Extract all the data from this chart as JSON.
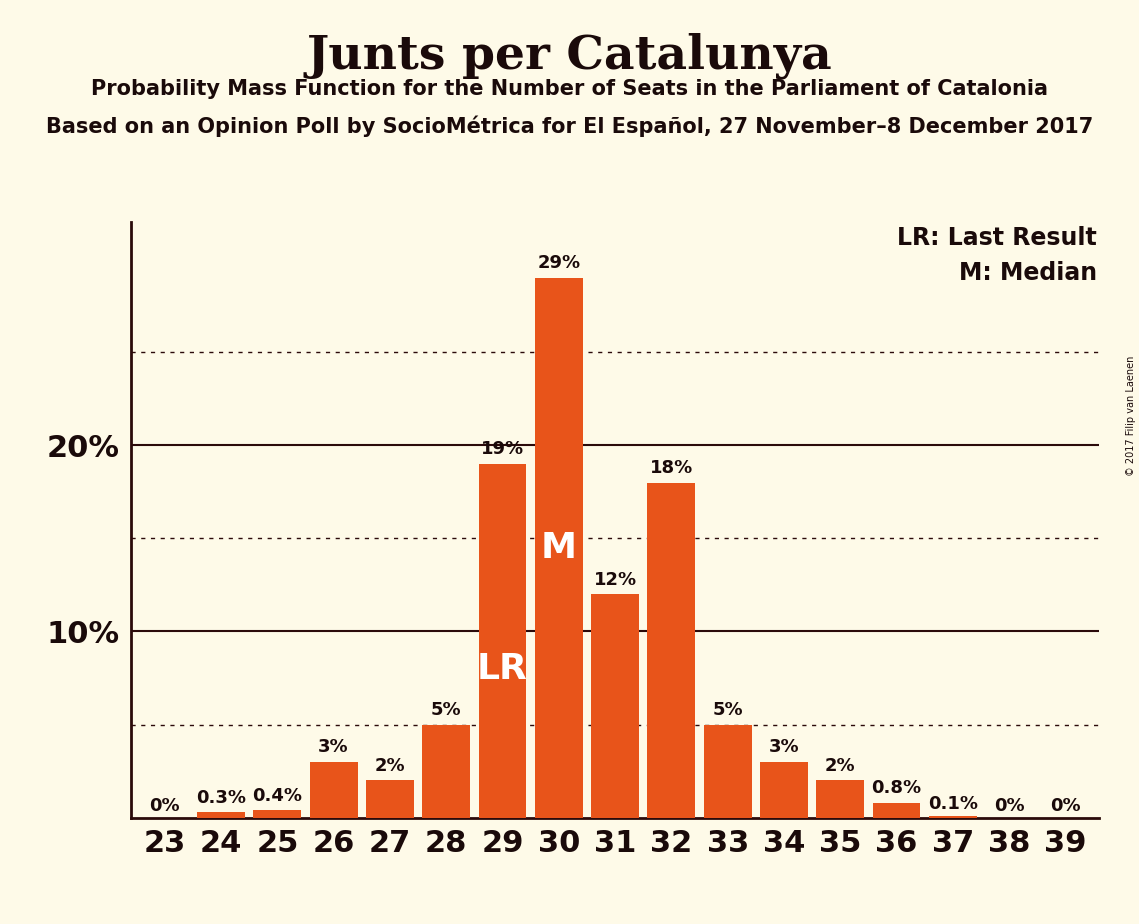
{
  "title": "Junts per Catalunya",
  "subtitle1": "Probability Mass Function for the Number of Seats in the Parliament of Catalonia",
  "subtitle2": "Based on an Opinion Poll by SocioMétrica for El Español, 27 November–8 December 2017",
  "copyright": "© 2017 Filip van Laenen",
  "seats": [
    23,
    24,
    25,
    26,
    27,
    28,
    29,
    30,
    31,
    32,
    33,
    34,
    35,
    36,
    37,
    38,
    39
  ],
  "probabilities": [
    0.0,
    0.3,
    0.4,
    3.0,
    2.0,
    5.0,
    19.0,
    29.0,
    12.0,
    18.0,
    5.0,
    3.0,
    2.0,
    0.8,
    0.1,
    0.0,
    0.0
  ],
  "labels": [
    "0%",
    "0.3%",
    "0.4%",
    "3%",
    "2%",
    "5%",
    "19%",
    "29%",
    "12%",
    "18%",
    "5%",
    "3%",
    "2%",
    "0.8%",
    "0.1%",
    "0%",
    "0%"
  ],
  "bar_color": "#E8541A",
  "background_color": "#FEFAE8",
  "axis_color": "#2B0A0A",
  "text_color": "#1A0A0A",
  "lr_seat": 29,
  "median_seat": 30,
  "lr_label": "LR",
  "median_label": "M",
  "legend_lr": "LR: Last Result",
  "legend_m": "M: Median",
  "ylim": [
    0,
    32
  ],
  "dotted_lines": [
    5,
    15,
    25
  ],
  "solid_lines": [
    10,
    20
  ],
  "title_fontsize": 34,
  "subtitle1_fontsize": 15,
  "subtitle2_fontsize": 15,
  "legend_fontsize": 17,
  "tick_label_fontsize": 22,
  "bar_label_fontsize": 13
}
